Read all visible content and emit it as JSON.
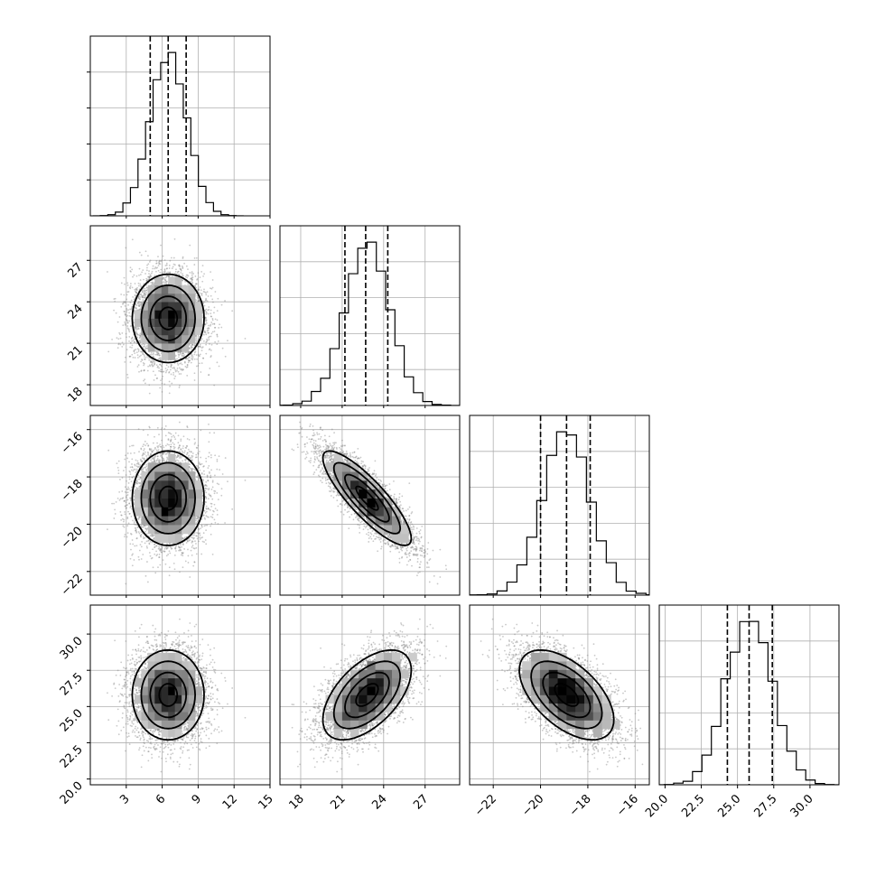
{
  "chart_data": {
    "type": "corner",
    "title": "",
    "parameters": [
      {
        "range": [
          0,
          15
        ],
        "ticks": [
          3,
          6,
          9,
          12,
          15
        ],
        "tick_labels": [
          "3",
          "6",
          "9",
          "12",
          "15"
        ],
        "quantiles": [
          5.0,
          6.5,
          8.0
        ]
      },
      {
        "range": [
          16.5,
          29.5
        ],
        "ticks": [
          18,
          21,
          24,
          27
        ],
        "tick_labels": [
          "18",
          "21",
          "24",
          "27"
        ],
        "quantiles": [
          21.2,
          22.7,
          24.3
        ]
      },
      {
        "range": [
          -23.0,
          -15.4
        ],
        "ticks": [
          -22,
          -20,
          -18,
          -16
        ],
        "tick_labels": [
          "−22",
          "−20",
          "−18",
          "−16"
        ],
        "quantiles": [
          -20.0,
          -18.9,
          -17.9
        ]
      },
      {
        "range": [
          19.6,
          32.0
        ],
        "ticks": [
          20.0,
          22.5,
          25.0,
          27.5,
          30.0
        ],
        "tick_labels": [
          "20.0",
          "22.5",
          "25.0",
          "27.5",
          "30.0"
        ],
        "quantiles": [
          24.3,
          25.8,
          27.4
        ]
      }
    ],
    "samples_mean": [
      6.5,
      22.8,
      -18.9,
      25.8
    ],
    "samples_std": [
      1.5,
      1.6,
      1.0,
      1.55
    ],
    "correlation": [
      [
        1.0,
        0.0,
        0.0,
        0.0
      ],
      [
        0.0,
        1.0,
        -0.85,
        0.55
      ],
      [
        0.0,
        -0.85,
        1.0,
        -0.55
      ],
      [
        0.0,
        0.55,
        -0.55,
        1.0
      ]
    ],
    "histogram_bins": 20,
    "contour_levels_sigma": [
      0.5,
      1.0,
      1.5,
      2.0
    ],
    "grid": true
  }
}
